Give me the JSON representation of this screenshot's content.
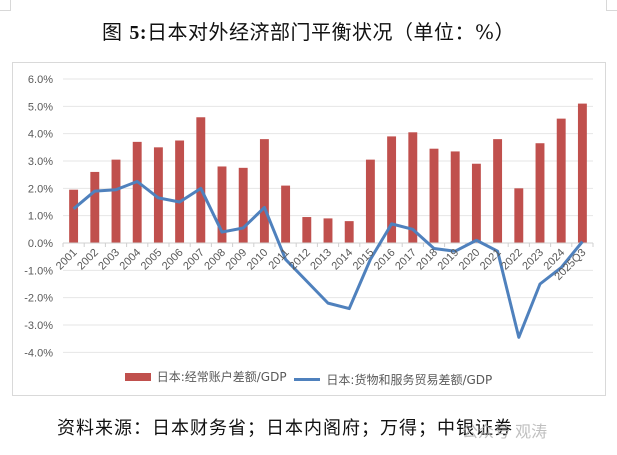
{
  "title": {
    "prefix": "图 ",
    "number": "5:",
    "text": "日本对外经济部门平衡状况（单位：%）"
  },
  "legend": {
    "bar_label": "日本:经常账户差额/GDP",
    "line_label": "日本:货物和服务贸易差额/GDP"
  },
  "source": "资料来源：日本财务省；日本内阁府；万得；中银证券",
  "watermark": "公众号 观涛",
  "colors": {
    "bar": "#c0504d",
    "line": "#4f81bd",
    "grid": "#e6e6e6",
    "axis_text": "#595959"
  },
  "chart_data": {
    "type": "bar",
    "title": "图 5:日本对外经济部门平衡状况（单位：%）",
    "xlabel": "",
    "ylabel": "",
    "ylim": [
      -4.0,
      6.0
    ],
    "yticks": [
      "6.0%",
      "5.0%",
      "4.0%",
      "3.0%",
      "2.0%",
      "1.0%",
      "0.0%",
      "-1.0%",
      "-2.0%",
      "-3.0%",
      "-4.0%"
    ],
    "grid": true,
    "legend_position": "bottom",
    "categories": [
      "2001",
      "2002",
      "2003",
      "2004",
      "2005",
      "2006",
      "2007",
      "2008",
      "2009",
      "2010",
      "2011",
      "2012",
      "2013",
      "2014",
      "2015",
      "2016",
      "2017",
      "2018",
      "2019",
      "2020",
      "2021",
      "2022",
      "2023",
      "2024",
      "2025Q3"
    ],
    "series": [
      {
        "name": "日本:经常账户差额/GDP",
        "type": "bar",
        "values": [
          1.95,
          2.6,
          3.05,
          3.7,
          3.5,
          3.75,
          4.6,
          2.8,
          2.75,
          3.8,
          2.1,
          0.95,
          0.9,
          0.8,
          3.05,
          3.9,
          4.05,
          3.45,
          3.35,
          2.9,
          3.8,
          2.0,
          3.65,
          4.55,
          5.1
        ]
      },
      {
        "name": "日本:货物和服务贸易差额/GDP",
        "type": "line",
        "values": [
          1.25,
          1.9,
          1.95,
          2.25,
          1.65,
          1.5,
          2.0,
          0.4,
          0.55,
          1.3,
          -0.6,
          -1.4,
          -2.2,
          -2.4,
          -0.6,
          0.7,
          0.5,
          -0.2,
          -0.3,
          0.1,
          -0.3,
          -3.45,
          -1.5,
          -0.9,
          0.05
        ]
      }
    ]
  }
}
